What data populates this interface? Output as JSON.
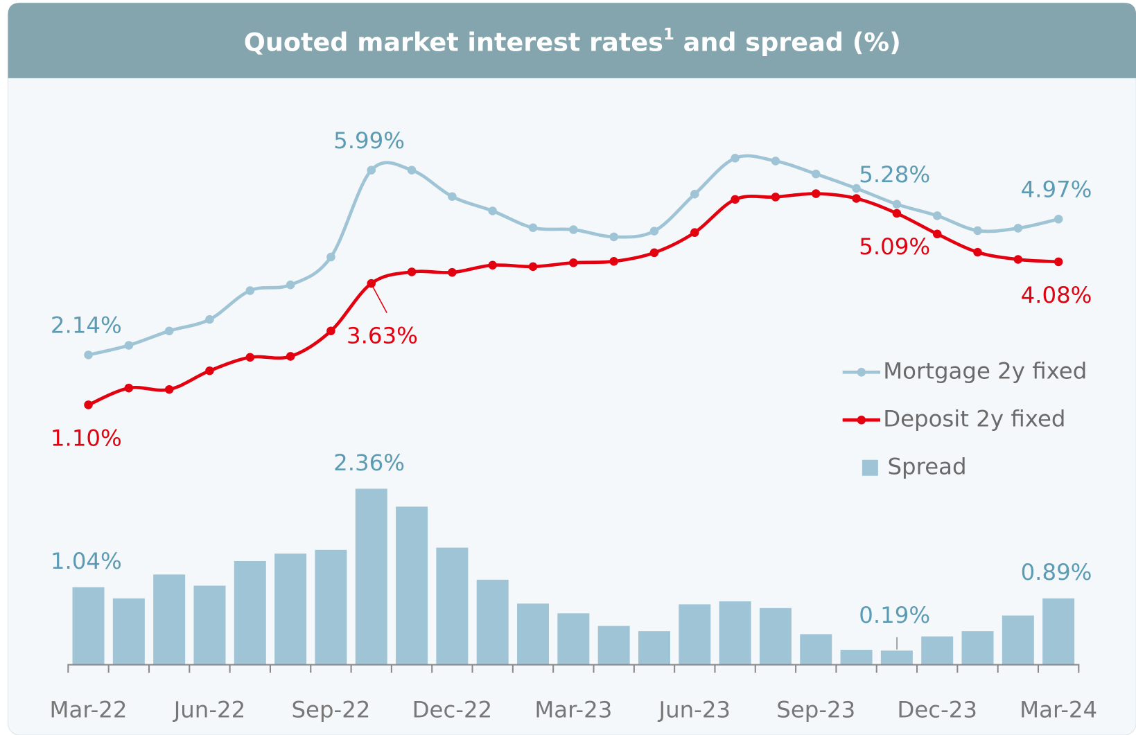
{
  "chart_data": {
    "type": "combo",
    "title": [
      "Quoted market interest rates",
      "1",
      " and spread (%)"
    ],
    "categories": [
      "Mar-22",
      null,
      null,
      "Jun-22",
      null,
      null,
      "Sep-22",
      null,
      null,
      "Dec-22",
      null,
      null,
      "Mar-23",
      null,
      null,
      "Jun-23",
      null,
      null,
      "Sep-23",
      null,
      null,
      "Dec-23",
      null,
      null,
      "Mar-24"
    ],
    "series": [
      {
        "name": "Mortgage 2y fixed",
        "type": "line",
        "color": "#9fc4d5",
        "label_color": "#5b9bb4",
        "values": [
          2.14,
          2.34,
          2.64,
          2.88,
          3.48,
          3.6,
          4.18,
          5.99,
          5.99,
          5.44,
          5.14,
          4.79,
          4.75,
          4.6,
          4.72,
          5.49,
          6.24,
          6.18,
          5.91,
          5.61,
          5.28,
          5.04,
          4.73,
          4.78,
          4.97
        ],
        "value_labels": [
          "2.14%",
          null,
          null,
          null,
          null,
          null,
          null,
          "5.99%",
          null,
          null,
          null,
          null,
          null,
          null,
          null,
          null,
          null,
          null,
          null,
          null,
          "5.28%",
          null,
          null,
          null,
          "4.97%"
        ]
      },
      {
        "name": "Deposit 2y fixed",
        "type": "line",
        "color": "#e3000f",
        "label_color": "#e3000f",
        "values": [
          1.1,
          1.45,
          1.42,
          1.81,
          2.09,
          2.11,
          2.64,
          3.63,
          3.87,
          3.86,
          4.01,
          3.98,
          4.06,
          4.09,
          4.27,
          4.69,
          5.38,
          5.43,
          5.5,
          5.4,
          5.09,
          4.66,
          4.28,
          4.13,
          4.08
        ],
        "value_labels": [
          "1.10%",
          null,
          null,
          null,
          null,
          null,
          null,
          "3.63%",
          null,
          null,
          null,
          null,
          null,
          null,
          null,
          null,
          null,
          null,
          null,
          null,
          "5.09%",
          null,
          null,
          null,
          "4.08%"
        ]
      },
      {
        "name": "Spread",
        "type": "bar",
        "axis": "y2",
        "color": "#9fc4d5",
        "label_color": "#5b9bb4",
        "values": [
          1.04,
          0.89,
          1.21,
          1.06,
          1.39,
          1.49,
          1.54,
          2.36,
          2.12,
          1.57,
          1.14,
          0.82,
          0.69,
          0.52,
          0.45,
          0.81,
          0.85,
          0.76,
          0.41,
          0.2,
          0.19,
          0.38,
          0.45,
          0.66,
          0.89
        ],
        "value_labels": [
          "1.04%",
          null,
          null,
          null,
          null,
          null,
          null,
          "2.36%",
          null,
          null,
          null,
          null,
          null,
          null,
          null,
          null,
          null,
          null,
          null,
          null,
          "0.19%",
          null,
          null,
          null,
          "0.89%"
        ]
      }
    ],
    "ylim": [
      0,
      7
    ],
    "y2lim": [
      0,
      3
    ],
    "legend": "right"
  }
}
